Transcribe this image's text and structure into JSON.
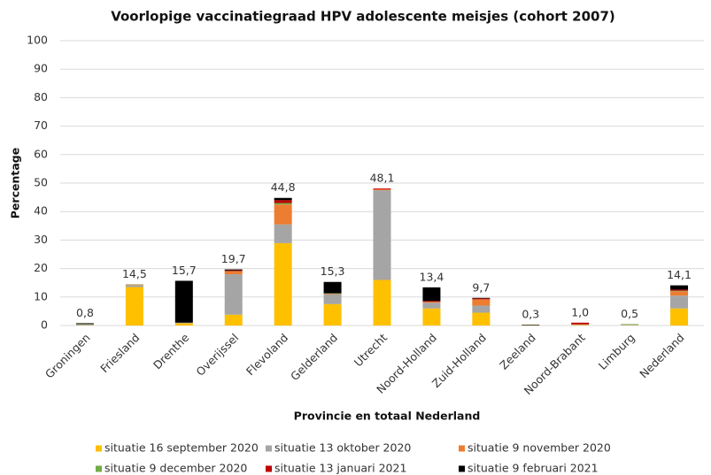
{
  "chart_data": {
    "type": "stacked_bar",
    "title": "Voorlopige vaccinatiegraad HPV adolescente meisjes (cohort 2007)",
    "x_label": "Provincie en totaal Nederland",
    "y_label": "Percentage",
    "categories": [
      "Groningen",
      "Friesland",
      "Drenthe",
      "Overijssel",
      "Flevoland",
      "Gelderland",
      "Utrecht",
      "Noord-Holland",
      "Zuid-Holland",
      "Zeeland",
      "Noord-Brabant",
      "Limburg",
      "Nederland"
    ],
    "series": [
      {
        "name": "situatie 16 september 2020",
        "color": "#ffc000",
        "values": [
          0.1,
          13.5,
          0.8,
          3.8,
          28.9,
          7.5,
          16,
          6,
          4.5,
          0.1,
          0.2,
          0.1,
          6
        ]
      },
      {
        "name": "situatie 13 oktober 2020",
        "color": "#a5a5a5",
        "values": [
          0.3,
          0.7,
          0.2,
          14.2,
          6.6,
          3.5,
          31.5,
          2,
          2.5,
          0,
          0.2,
          0.2,
          4.5
        ]
      },
      {
        "name": "situatie 9 november 2020",
        "color": "#ed7d31",
        "values": [
          0,
          0.2,
          0,
          1.0,
          7.0,
          0.2,
          0.3,
          0.3,
          2.2,
          0,
          0,
          0,
          1.5
        ]
      },
      {
        "name": "situatie 9 december 2020",
        "color": "#70ad47",
        "values": [
          0.1,
          0.1,
          0,
          0.1,
          0.5,
          0.1,
          0,
          0,
          0,
          0,
          0,
          0.2,
          0.2
        ]
      },
      {
        "name": "situatie 13 januari 2021",
        "color": "#c00000",
        "values": [
          0,
          0,
          0,
          0.3,
          1.0,
          0,
          0.3,
          0.3,
          0.3,
          0,
          0.6,
          0,
          0.4
        ]
      },
      {
        "name": "situatie 9 februari 2021",
        "color": "#000000",
        "values": [
          0.3,
          0,
          14.7,
          0.3,
          0.8,
          4.0,
          0,
          4.8,
          0.2,
          0.2,
          0,
          0,
          1.5
        ]
      }
    ],
    "totals": [
      0.8,
      14.5,
      15.7,
      19.7,
      44.8,
      15.3,
      48.1,
      13.4,
      9.7,
      0.3,
      1.0,
      0.5,
      14.1
    ],
    "total_labels": [
      "0,8",
      "14,5",
      "15,7",
      "19,7",
      "44,8",
      "15,3",
      "48,1",
      "13,4",
      "9,7",
      "0,3",
      "1,0",
      "0,5",
      "14,1"
    ],
    "ylim": [
      0,
      100
    ],
    "yticks": [
      0,
      10,
      20,
      30,
      40,
      50,
      60,
      70,
      80,
      90,
      100
    ],
    "grid": true
  }
}
